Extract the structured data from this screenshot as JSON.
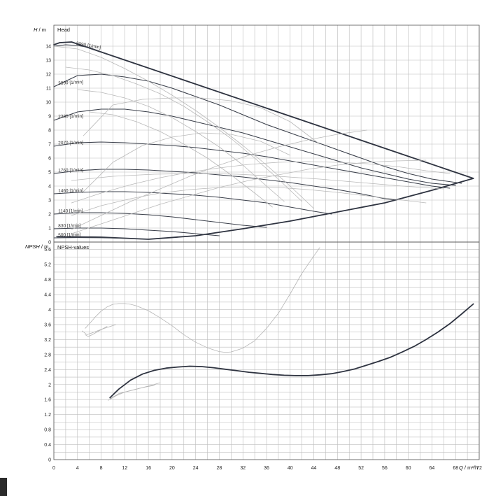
{
  "chart_data": [
    {
      "type": "line",
      "title": "Head",
      "ylabel_var": "H",
      "ylabel_unit": "m",
      "xlim": [
        0,
        72
      ],
      "ylim": [
        0,
        15
      ],
      "x_ticks": [
        0,
        4,
        8,
        12,
        16,
        20,
        24,
        28,
        32,
        36,
        40,
        44,
        48,
        52,
        56,
        60,
        64,
        68,
        72
      ],
      "y_ticks": [
        0,
        1,
        2,
        3,
        4,
        5,
        6,
        7,
        8,
        9,
        10,
        11,
        12,
        13,
        14
      ],
      "grid": true,
      "speed_labels": [
        "3090 [1/min]",
        "2890 [1/min]",
        "2380 [1/min]",
        "2070 [1/min]",
        "1760 [1/min]",
        "1460 [1/min]",
        "1140 [1/min]",
        "830 [1/min]",
        "500 [1/min]"
      ],
      "series": [
        {
          "style": "envelope",
          "x": [
            0,
            1,
            3,
            71
          ],
          "y": [
            14.1,
            14.25,
            14.3,
            4.55
          ]
        },
        {
          "style": "envelope",
          "x": [
            0.5,
            8,
            16,
            24,
            32,
            40,
            48,
            56,
            64,
            71
          ],
          "y": [
            0.38,
            0.35,
            0.2,
            0.45,
            0.95,
            1.5,
            2.15,
            2.8,
            3.7,
            4.55
          ]
        },
        {
          "style": "speed",
          "x": [
            0,
            2,
            4,
            6,
            8,
            10
          ],
          "y": [
            14.0,
            14.1,
            14.05,
            13.9,
            13.6,
            13.3
          ]
        },
        {
          "style": "speed",
          "x": [
            0,
            4,
            8,
            12,
            16,
            20,
            24,
            28,
            32,
            36,
            40,
            44,
            48,
            52,
            56,
            60,
            64,
            69
          ],
          "y": [
            11.1,
            11.9,
            12.0,
            11.8,
            11.5,
            11.0,
            10.4,
            9.8,
            9.1,
            8.4,
            7.8,
            7.2,
            6.6,
            6.0,
            5.4,
            4.9,
            4.5,
            4.2
          ]
        },
        {
          "style": "speed",
          "x": [
            0,
            4,
            8,
            12,
            16,
            20,
            24,
            28,
            32,
            36,
            40,
            44,
            48,
            52,
            56,
            60,
            64,
            68
          ],
          "y": [
            8.7,
            9.3,
            9.5,
            9.5,
            9.3,
            9.0,
            8.6,
            8.2,
            7.8,
            7.3,
            6.8,
            6.3,
            5.8,
            5.3,
            4.9,
            4.5,
            4.2,
            4.05
          ]
        },
        {
          "style": "speed",
          "x": [
            0,
            4,
            8,
            12,
            16,
            20,
            24,
            28,
            32,
            36,
            40,
            44,
            48,
            52,
            56,
            60,
            64,
            67
          ],
          "y": [
            6.85,
            7.1,
            7.15,
            7.1,
            7.0,
            6.9,
            6.75,
            6.55,
            6.35,
            6.1,
            5.8,
            5.5,
            5.2,
            4.9,
            4.6,
            4.3,
            4.0,
            3.85
          ]
        },
        {
          "style": "speed",
          "x": [
            0,
            4,
            8,
            12,
            16,
            20,
            24,
            28,
            32,
            36,
            40,
            44,
            48,
            52,
            56,
            58
          ],
          "y": [
            4.9,
            5.1,
            5.2,
            5.2,
            5.15,
            5.05,
            4.95,
            4.8,
            4.65,
            4.45,
            4.25,
            4.0,
            3.75,
            3.45,
            3.1,
            3.0
          ]
        },
        {
          "style": "speed",
          "x": [
            0,
            4,
            8,
            12,
            16,
            20,
            24,
            28,
            32,
            36,
            40,
            44,
            47
          ],
          "y": [
            3.45,
            3.55,
            3.6,
            3.6,
            3.55,
            3.45,
            3.35,
            3.2,
            3.0,
            2.8,
            2.5,
            2.2,
            2.0
          ]
        },
        {
          "style": "speed",
          "x": [
            0,
            4,
            8,
            12,
            16,
            20,
            24,
            28,
            32,
            36
          ],
          "y": [
            2.0,
            2.1,
            2.1,
            2.05,
            1.95,
            1.8,
            1.6,
            1.4,
            1.2,
            1.05
          ]
        },
        {
          "style": "speed",
          "x": [
            0,
            4,
            8,
            12,
            16,
            20,
            24,
            28
          ],
          "y": [
            0.95,
            1.0,
            1.0,
            0.95,
            0.85,
            0.75,
            0.6,
            0.45
          ]
        },
        {
          "style": "speed",
          "x": [
            0,
            4,
            8,
            12,
            16
          ],
          "y": [
            0.3,
            0.32,
            0.31,
            0.27,
            0.2
          ]
        },
        {
          "style": "efficiency",
          "x": [
            0,
            4,
            8,
            12,
            16,
            20,
            24,
            28,
            32,
            36,
            40,
            44
          ],
          "y": [
            14.0,
            13.8,
            13.2,
            12.4,
            11.5,
            10.5,
            9.4,
            8.2,
            6.9,
            5.5,
            4.0,
            2.4
          ]
        },
        {
          "style": "efficiency",
          "x": [
            2,
            6,
            10,
            14,
            18,
            22,
            26,
            30,
            34,
            38,
            42
          ],
          "y": [
            12.5,
            12.3,
            11.9,
            11.3,
            10.6,
            9.7,
            8.6,
            7.4,
            6.0,
            4.5,
            2.9
          ]
        },
        {
          "style": "efficiency",
          "x": [
            4,
            8,
            12,
            16,
            20,
            24,
            28,
            32,
            36,
            39
          ],
          "y": [
            10.9,
            10.7,
            10.3,
            9.7,
            8.9,
            7.9,
            6.8,
            5.5,
            4.0,
            2.9
          ]
        },
        {
          "style": "efficiency",
          "x": [
            6,
            10,
            14,
            18,
            22,
            26,
            30,
            34,
            37
          ],
          "y": [
            9.3,
            9.1,
            8.6,
            7.9,
            7.0,
            6.0,
            4.8,
            3.5,
            2.5
          ]
        },
        {
          "style": "efficiency",
          "x": [
            3,
            8,
            13,
            18,
            23,
            28,
            33,
            38,
            43,
            48,
            53
          ],
          "y": [
            0.9,
            1.9,
            2.9,
            3.8,
            4.7,
            5.5,
            6.2,
            6.8,
            7.3,
            7.7,
            8.0
          ]
        },
        {
          "style": "efficiency",
          "x": [
            3,
            8,
            13,
            18,
            23,
            28,
            33,
            38,
            43,
            48,
            53,
            58,
            63
          ],
          "y": [
            0.6,
            1.3,
            2.0,
            2.7,
            3.3,
            3.9,
            4.4,
            4.8,
            5.2,
            5.5,
            5.7,
            5.8,
            5.85
          ]
        },
        {
          "style": "efficiency",
          "x": [
            3,
            8,
            13,
            18,
            23,
            28,
            33,
            38,
            43,
            48,
            53,
            58,
            63,
            67
          ],
          "y": [
            2.8,
            3.5,
            4.1,
            4.6,
            5.0,
            5.3,
            5.55,
            5.7,
            5.75,
            5.7,
            5.6,
            5.4,
            5.1,
            4.9
          ]
        },
        {
          "style": "efficiency",
          "x": [
            3,
            10,
            17,
            24,
            31,
            38,
            45,
            52,
            59,
            66
          ],
          "y": [
            4.4,
            4.7,
            4.85,
            4.9,
            4.85,
            4.7,
            4.5,
            4.25,
            4.0,
            3.8
          ]
        },
        {
          "style": "efficiency",
          "x": [
            3,
            8,
            13,
            18,
            23,
            28,
            33,
            38,
            43,
            48,
            53,
            58,
            63
          ],
          "y": [
            1.9,
            2.6,
            3.1,
            3.5,
            3.75,
            3.9,
            3.95,
            3.9,
            3.75,
            3.55,
            3.3,
            3.05,
            2.8
          ]
        },
        {
          "style": "efficiency",
          "x": [
            5,
            10,
            15,
            20,
            25,
            30,
            35,
            40,
            45
          ],
          "y": [
            7.6,
            9.8,
            10.2,
            10.3,
            10.3,
            10.1,
            9.6,
            8.6,
            7.0
          ]
        },
        {
          "style": "efficiency",
          "x": [
            5,
            10,
            15,
            20,
            25,
            30,
            35,
            40
          ],
          "y": [
            3.6,
            5.7,
            6.9,
            7.5,
            7.8,
            7.7,
            7.2,
            6.2
          ]
        }
      ]
    },
    {
      "type": "line",
      "title": "NPSH-values",
      "ylabel_var": "NPSH",
      "ylabel_unit": "m",
      "xlabel_var": "Q",
      "xlabel_unit": "m³/h",
      "xlim": [
        0,
        72
      ],
      "ylim": [
        0,
        5.8
      ],
      "x_ticks": [
        0,
        4,
        8,
        12,
        16,
        20,
        24,
        28,
        32,
        36,
        40,
        44,
        48,
        52,
        56,
        60,
        64,
        68,
        72
      ],
      "y_ticks": [
        0,
        0.4,
        0.8,
        1.2,
        1.6,
        2,
        2.4,
        2.8,
        3.2,
        3.6,
        4,
        4.4,
        4.8,
        5.2,
        5.6
      ],
      "x_tick_labels": [
        "0",
        "4",
        "8",
        "12",
        "16",
        "20",
        "24",
        "28",
        "32",
        "36",
        "40",
        "44",
        "48",
        "52",
        "56",
        "60",
        "64",
        "68",
        "72"
      ],
      "y_tick_labels": [
        "0",
        "0.4",
        "0.8",
        "1.2",
        "1.6",
        "2",
        "2.4",
        "2.8",
        "3.2",
        "3.6",
        "4",
        "4.4",
        "4.8",
        "5.2",
        "5.6"
      ],
      "grid": true,
      "series": [
        {
          "style": "main",
          "x": [
            9.5,
            11,
            13,
            15,
            17,
            19,
            21,
            23,
            25,
            27,
            29,
            31,
            33,
            35,
            37,
            39,
            41,
            43,
            45,
            47,
            49,
            51,
            53,
            55,
            57,
            59,
            61,
            63,
            65,
            67,
            69,
            71
          ],
          "y": [
            1.65,
            1.88,
            2.12,
            2.28,
            2.38,
            2.44,
            2.47,
            2.49,
            2.48,
            2.45,
            2.41,
            2.37,
            2.33,
            2.3,
            2.27,
            2.25,
            2.24,
            2.24,
            2.26,
            2.29,
            2.35,
            2.42,
            2.52,
            2.62,
            2.73,
            2.87,
            3.02,
            3.2,
            3.4,
            3.62,
            3.88,
            4.15
          ]
        },
        {
          "style": "faint",
          "x": [
            5.3,
            6,
            7,
            8,
            9,
            10,
            11,
            12,
            13,
            14,
            16,
            18,
            20,
            22,
            24,
            26,
            28,
            29,
            30,
            32,
            34,
            36,
            38,
            40,
            42,
            44,
            45
          ],
          "y": [
            3.5,
            3.62,
            3.8,
            3.96,
            4.07,
            4.14,
            4.16,
            4.16,
            4.14,
            4.1,
            3.97,
            3.78,
            3.57,
            3.33,
            3.13,
            2.98,
            2.88,
            2.86,
            2.87,
            2.97,
            3.17,
            3.5,
            3.9,
            4.42,
            4.97,
            5.43,
            5.65
          ]
        },
        {
          "style": "faint",
          "x": [
            5.3,
            5.8,
            6.5,
            7.5,
            9
          ],
          "y": [
            3.33,
            3.28,
            3.33,
            3.42,
            3.55
          ]
        },
        {
          "style": "faint",
          "x": [
            4.8,
            5.6,
            6.5,
            8,
            10.5
          ],
          "y": [
            3.43,
            3.33,
            3.38,
            3.47,
            3.6
          ]
        },
        {
          "style": "faint",
          "x": [
            9.2,
            10.5,
            12,
            14,
            16,
            18
          ],
          "y": [
            1.58,
            1.7,
            1.8,
            1.88,
            1.96,
            2.05
          ]
        },
        {
          "style": "faint",
          "x": [
            9.5,
            11,
            13,
            15,
            17
          ],
          "y": [
            1.62,
            1.76,
            1.84,
            1.92,
            1.98
          ]
        }
      ]
    }
  ]
}
